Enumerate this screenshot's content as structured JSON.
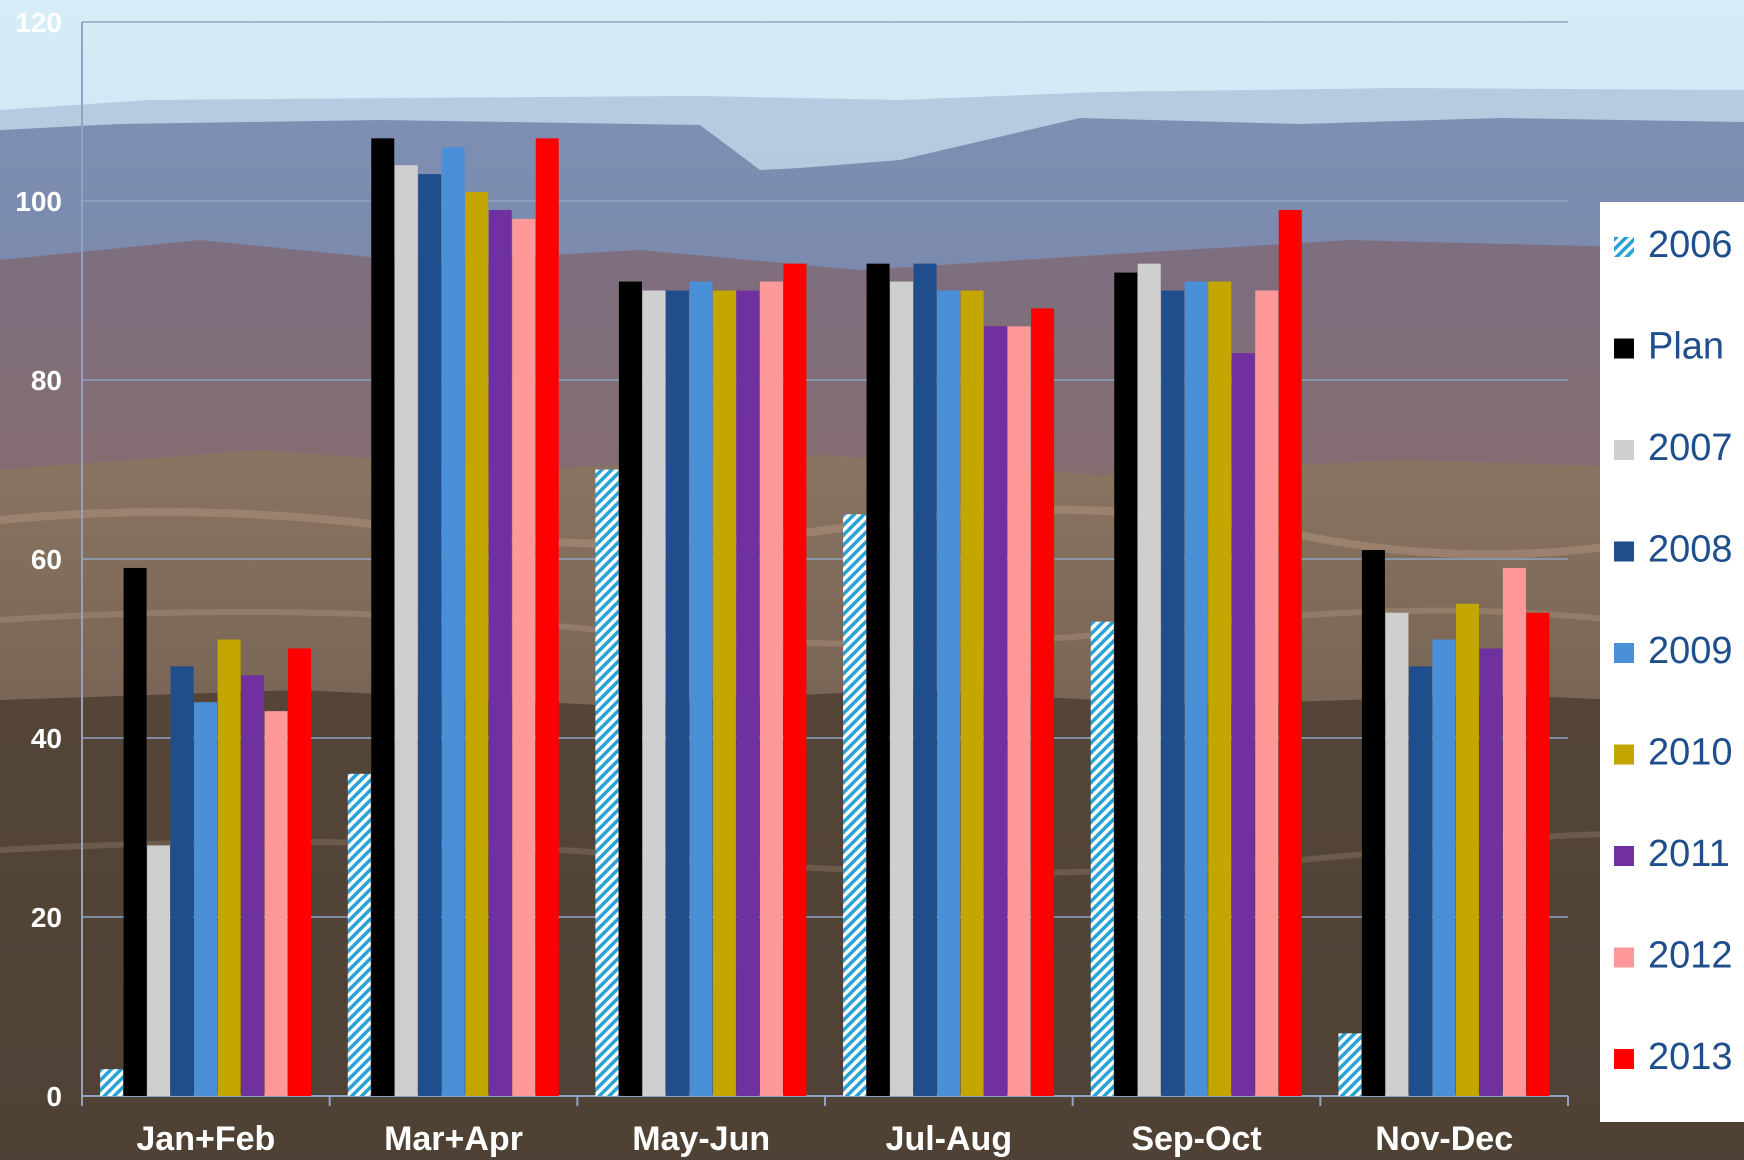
{
  "chart_data": {
    "type": "bar",
    "categories": [
      "Jan+Feb",
      "Mar+Apr",
      "May-Jun",
      "Jul-Aug",
      "Sep-Oct",
      "Nov-Dec"
    ],
    "series": [
      {
        "name": "2006",
        "color": "#29a3d6",
        "pattern": "hatched",
        "values": [
          3,
          36,
          70,
          65,
          53,
          7
        ]
      },
      {
        "name": "Plan",
        "color": "#000000",
        "values": [
          59,
          107,
          91,
          93,
          92,
          61
        ]
      },
      {
        "name": "2007",
        "color": "#cfcfcf",
        "values": [
          28,
          104,
          90,
          91,
          93,
          54
        ]
      },
      {
        "name": "2008",
        "color": "#1f4e8c",
        "values": [
          48,
          103,
          90,
          93,
          90,
          48
        ]
      },
      {
        "name": "2009",
        "color": "#4a90d9",
        "values": [
          44,
          106,
          91,
          90,
          91,
          51
        ]
      },
      {
        "name": "2010",
        "color": "#c4a600",
        "values": [
          51,
          101,
          90,
          90,
          91,
          55
        ]
      },
      {
        "name": "2011",
        "color": "#7030a0",
        "values": [
          47,
          99,
          90,
          86,
          83,
          50
        ]
      },
      {
        "name": "2012",
        "color": "#ff9999",
        "values": [
          43,
          98,
          91,
          86,
          90,
          59
        ]
      },
      {
        "name": "2013",
        "color": "#ff0000",
        "values": [
          50,
          107,
          93,
          88,
          99,
          54
        ]
      }
    ],
    "y_ticks": [
      "0",
      "20",
      "40",
      "60",
      "80",
      "100",
      "120"
    ],
    "ylim": [
      0,
      120
    ],
    "grid": true,
    "legend_position": "right",
    "title": "",
    "xlabel": "",
    "ylabel": ""
  }
}
